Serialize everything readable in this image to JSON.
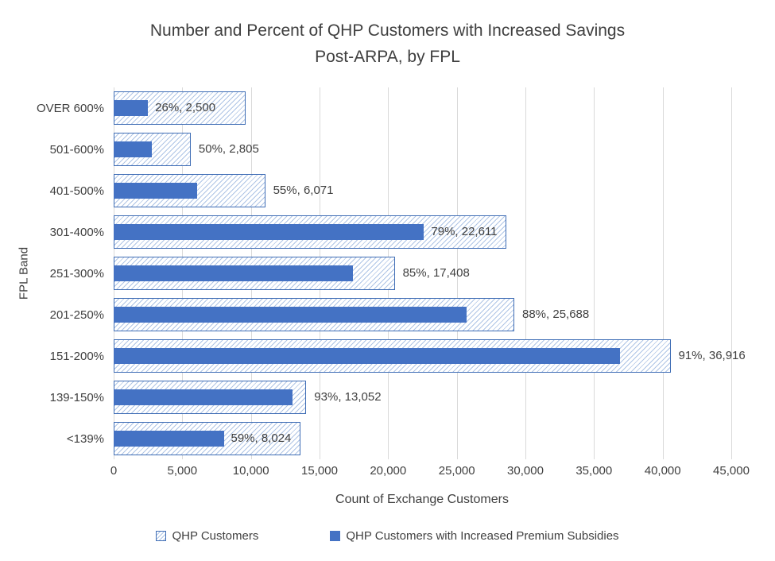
{
  "chart_data": {
    "type": "bar",
    "orientation": "horizontal",
    "title": "Number and Percent of QHP Customers with Increased Savings Post-ARPA, by FPL",
    "title_lines": [
      "Number and Percent of QHP Customers with Increased Savings",
      "Post-ARPA, by FPL"
    ],
    "xlabel": "Count of Exchange Customers",
    "ylabel": "FPL Band",
    "xlim": [
      0,
      45000
    ],
    "xticks": [
      0,
      5000,
      10000,
      15000,
      20000,
      25000,
      30000,
      35000,
      40000,
      45000
    ],
    "xtick_labels": [
      "0",
      "5,000",
      "10,000",
      "15,000",
      "20,000",
      "25,000",
      "30,000",
      "35,000",
      "40,000",
      "45,000"
    ],
    "grid": "vertical",
    "legend_position": "bottom",
    "categories": [
      "OVER 600%",
      "501-600%",
      "401-500%",
      "301-400%",
      "251-300%",
      "201-250%",
      "151-200%",
      "139-150%",
      "<139%"
    ],
    "series": [
      {
        "name": "QHP Customers",
        "style": "hatched",
        "values": [
          9615,
          5610,
          11038,
          28622,
          20480,
          29191,
          40567,
          14034,
          13600
        ]
      },
      {
        "name": "QHP Customers with Increased Premium Subsidies",
        "style": "solid",
        "values": [
          2500,
          2805,
          6071,
          22611,
          17408,
          25688,
          36916,
          13052,
          8024
        ]
      }
    ],
    "percent_with_subsidies": [
      26,
      50,
      55,
      79,
      85,
      88,
      91,
      93,
      59
    ],
    "data_labels": [
      "26%, 2,500",
      "50%, 2,805",
      "55%, 6,071",
      "79%, 22,611",
      "85%, 17,408",
      "88%, 25,688",
      "91%, 36,916",
      "93%, 13,052",
      "59%, 8,024"
    ]
  },
  "colors": {
    "solid_bar": "#4472C4",
    "hatch_line": "#AEC4E5",
    "hatch_border": "#3F6DB5",
    "gridline": "#D9D9D9",
    "text": "#404040",
    "title": "#3F3F3F",
    "background": "#FFFFFF"
  }
}
